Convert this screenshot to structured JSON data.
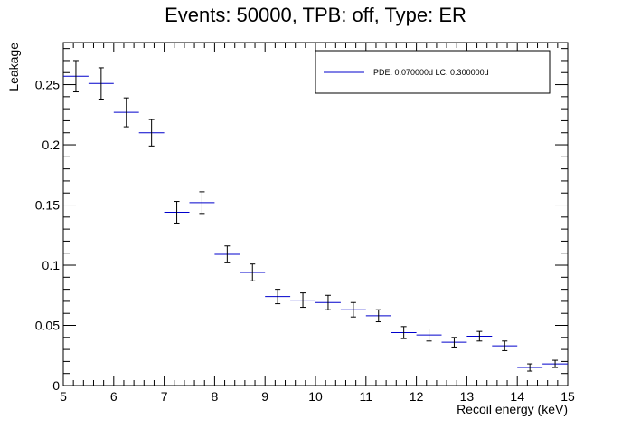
{
  "chart_data": {
    "type": "scatter",
    "title": "Events: 50000, TPB: off, Type: ER",
    "xlabel": "Recoil energy (keV)",
    "ylabel": "Leakage",
    "xlim": [
      5,
      15
    ],
    "ylim": [
      0,
      0.285
    ],
    "x_ticks": [
      "5",
      "6",
      "7",
      "8",
      "9",
      "10",
      "11",
      "12",
      "13",
      "14",
      "15"
    ],
    "y_ticks": [
      "0",
      "0.05",
      "0.1",
      "0.15",
      "0.2",
      "0.25"
    ],
    "grid": false,
    "legend_position": "top-right",
    "series": [
      {
        "name": "PDE: 0.070000d LC: 0.300000d",
        "color": "#0000cc",
        "x_error": 0.25,
        "points": [
          {
            "x": 5.25,
            "y": 0.257,
            "yerr": 0.013
          },
          {
            "x": 5.75,
            "y": 0.251,
            "yerr": 0.013
          },
          {
            "x": 6.25,
            "y": 0.227,
            "yerr": 0.012
          },
          {
            "x": 6.75,
            "y": 0.21,
            "yerr": 0.011
          },
          {
            "x": 7.25,
            "y": 0.144,
            "yerr": 0.009
          },
          {
            "x": 7.75,
            "y": 0.152,
            "yerr": 0.009
          },
          {
            "x": 8.25,
            "y": 0.109,
            "yerr": 0.007
          },
          {
            "x": 8.75,
            "y": 0.094,
            "yerr": 0.007
          },
          {
            "x": 9.25,
            "y": 0.074,
            "yerr": 0.006
          },
          {
            "x": 9.75,
            "y": 0.071,
            "yerr": 0.006
          },
          {
            "x": 10.25,
            "y": 0.069,
            "yerr": 0.006
          },
          {
            "x": 10.75,
            "y": 0.063,
            "yerr": 0.006
          },
          {
            "x": 11.25,
            "y": 0.058,
            "yerr": 0.005
          },
          {
            "x": 11.75,
            "y": 0.044,
            "yerr": 0.005
          },
          {
            "x": 12.25,
            "y": 0.042,
            "yerr": 0.005
          },
          {
            "x": 12.75,
            "y": 0.036,
            "yerr": 0.004
          },
          {
            "x": 13.25,
            "y": 0.041,
            "yerr": 0.004
          },
          {
            "x": 13.75,
            "y": 0.033,
            "yerr": 0.004
          },
          {
            "x": 14.25,
            "y": 0.015,
            "yerr": 0.003
          },
          {
            "x": 14.75,
            "y": 0.018,
            "yerr": 0.003
          }
        ]
      }
    ]
  }
}
